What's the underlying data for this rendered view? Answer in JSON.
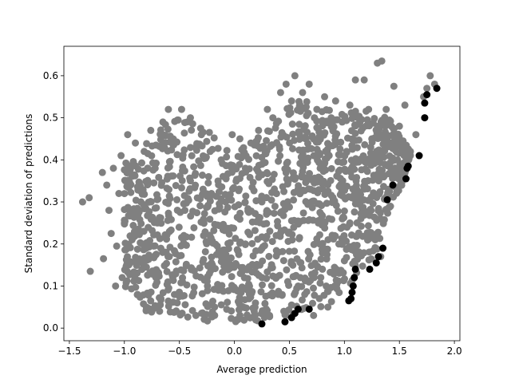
{
  "chart_data": {
    "type": "scatter",
    "title": "",
    "xlabel": "Average prediction",
    "ylabel": "Standard deviation of predictions",
    "xlim": [
      -1.55,
      2.05
    ],
    "ylim": [
      -0.03,
      0.67
    ],
    "xticks": [
      -1.5,
      -1.0,
      -0.5,
      0.0,
      0.5,
      1.0,
      1.5,
      2.0
    ],
    "xtick_labels": [
      "−1.5",
      "−1.0",
      "−0.5",
      "0.0",
      "0.5",
      "1.0",
      "1.5",
      "2.0"
    ],
    "yticks": [
      0.0,
      0.1,
      0.2,
      0.3,
      0.4,
      0.5,
      0.6
    ],
    "ytick_labels": [
      "0.0",
      "0.1",
      "0.2",
      "0.3",
      "0.4",
      "0.5",
      "0.6"
    ],
    "grid": false,
    "legend": "none",
    "series": [
      {
        "color": "#808080",
        "points": [
          [
            -1.38,
            0.3
          ],
          [
            -1.32,
            0.31
          ],
          [
            -1.31,
            0.135
          ],
          [
            -1.2,
            0.37
          ],
          [
            -1.19,
            0.165
          ],
          [
            -1.16,
            0.34
          ],
          [
            -1.14,
            0.28
          ],
          [
            -1.12,
            0.225
          ],
          [
            -1.1,
            0.38
          ],
          [
            -1.08,
            0.1
          ],
          [
            -1.07,
            0.195
          ],
          [
            -1.05,
            0.32
          ],
          [
            -1.03,
            0.41
          ],
          [
            -1.02,
            0.12
          ],
          [
            -1.0,
            0.25
          ],
          [
            -0.99,
            0.35
          ],
          [
            -0.97,
            0.46
          ],
          [
            -0.96,
            0.15
          ],
          [
            -0.93,
            0.21
          ],
          [
            -0.9,
            0.44
          ],
          [
            -0.88,
            0.08
          ],
          [
            -0.85,
            0.3
          ],
          [
            -0.82,
            0.42
          ],
          [
            -0.8,
            0.05
          ],
          [
            -0.76,
            0.47
          ],
          [
            -0.72,
            0.38
          ],
          [
            -0.68,
            0.04
          ],
          [
            -0.65,
            0.49
          ],
          [
            -0.62,
            0.18
          ],
          [
            -0.6,
            0.52
          ],
          [
            -0.55,
            0.44
          ],
          [
            -0.52,
            0.06
          ],
          [
            -0.48,
            0.52
          ],
          [
            -0.45,
            0.28
          ],
          [
            -0.4,
            0.5
          ],
          [
            -0.35,
            0.03
          ],
          [
            -0.3,
            0.46
          ],
          [
            -0.28,
            0.22
          ],
          [
            -0.22,
            0.42
          ],
          [
            -0.18,
            0.05
          ],
          [
            -0.12,
            0.4
          ],
          [
            -0.08,
            0.3
          ],
          [
            -0.02,
            0.46
          ],
          [
            0.02,
            0.02
          ],
          [
            0.05,
            0.45
          ],
          [
            0.1,
            0.38
          ],
          [
            0.15,
            0.44
          ],
          [
            0.18,
            0.04
          ],
          [
            0.22,
            0.47
          ],
          [
            0.25,
            0.3
          ],
          [
            0.3,
            0.52
          ],
          [
            0.32,
            0.03
          ],
          [
            0.35,
            0.5
          ],
          [
            0.38,
            0.22
          ],
          [
            0.42,
            0.56
          ],
          [
            0.45,
            0.04
          ],
          [
            0.47,
            0.58
          ],
          [
            0.52,
            0.54
          ],
          [
            0.55,
            0.6
          ],
          [
            0.58,
            0.1
          ],
          [
            0.62,
            0.56
          ],
          [
            0.65,
            0.45
          ],
          [
            0.68,
            0.58
          ],
          [
            0.72,
            0.03
          ],
          [
            0.75,
            0.52
          ],
          [
            0.78,
            0.38
          ],
          [
            0.82,
            0.55
          ],
          [
            0.85,
            0.05
          ],
          [
            0.88,
            0.5
          ],
          [
            0.92,
            0.54
          ],
          [
            0.95,
            0.2
          ],
          [
            0.98,
            0.49
          ],
          [
            1.02,
            0.42
          ],
          [
            1.05,
            0.53
          ],
          [
            1.08,
            0.33
          ],
          [
            1.1,
            0.59
          ],
          [
            1.12,
            0.5
          ],
          [
            1.15,
            0.26
          ],
          [
            1.18,
            0.59
          ],
          [
            1.22,
            0.52
          ],
          [
            1.25,
            0.45
          ],
          [
            1.3,
            0.63
          ],
          [
            1.34,
            0.635
          ],
          [
            1.38,
            0.52
          ],
          [
            1.42,
            0.44
          ],
          [
            1.45,
            0.575
          ],
          [
            1.5,
            0.48
          ],
          [
            1.55,
            0.53
          ],
          [
            1.6,
            0.41
          ],
          [
            1.65,
            0.46
          ],
          [
            1.72,
            0.55
          ],
          [
            1.75,
            0.57
          ],
          [
            1.78,
            0.6
          ],
          [
            1.82,
            0.58
          ],
          [
            0.6,
            0.12
          ],
          [
            0.8,
            0.14
          ],
          [
            1.0,
            0.16
          ],
          [
            1.05,
            0.25
          ],
          [
            1.2,
            0.27
          ],
          [
            1.25,
            0.22
          ],
          [
            1.28,
            0.21
          ],
          [
            1.33,
            0.17
          ],
          [
            1.4,
            0.33
          ],
          [
            1.48,
            0.38
          ],
          [
            -0.2,
            0.15
          ],
          [
            0.1,
            0.2
          ],
          [
            0.4,
            0.18
          ],
          [
            -0.4,
            0.35
          ],
          [
            -0.7,
            0.25
          ],
          [
            0.7,
            0.3
          ]
        ]
      },
      {
        "color": "#000000",
        "points": [
          [
            0.25,
            0.01
          ],
          [
            0.46,
            0.015
          ],
          [
            0.52,
            0.025
          ],
          [
            0.55,
            0.035
          ],
          [
            0.58,
            0.045
          ],
          [
            0.68,
            0.045
          ],
          [
            1.04,
            0.065
          ],
          [
            1.06,
            0.07
          ],
          [
            1.07,
            0.085
          ],
          [
            1.08,
            0.1
          ],
          [
            1.09,
            0.12
          ],
          [
            1.1,
            0.14
          ],
          [
            1.23,
            0.14
          ],
          [
            1.29,
            0.155
          ],
          [
            1.31,
            0.17
          ],
          [
            1.35,
            0.19
          ],
          [
            1.39,
            0.305
          ],
          [
            1.44,
            0.34
          ],
          [
            1.56,
            0.355
          ],
          [
            1.57,
            0.38
          ],
          [
            1.58,
            0.385
          ],
          [
            1.68,
            0.41
          ],
          [
            1.73,
            0.5
          ],
          [
            1.73,
            0.535
          ],
          [
            1.75,
            0.555
          ],
          [
            1.84,
            0.57
          ]
        ]
      }
    ],
    "dense_cloud": {
      "color": "#808080",
      "x_range": [
        -1.0,
        1.6
      ],
      "y_lower_edge": [
        [
          -1.0,
          0.1
        ],
        [
          -0.8,
          0.04
        ],
        [
          -0.5,
          0.02
        ],
        [
          0.0,
          0.01
        ],
        [
          0.3,
          0.02
        ],
        [
          0.5,
          0.03
        ],
        [
          0.8,
          0.05
        ],
        [
          1.0,
          0.08
        ],
        [
          1.1,
          0.12
        ],
        [
          1.3,
          0.18
        ],
        [
          1.4,
          0.28
        ],
        [
          1.55,
          0.35
        ],
        [
          1.6,
          0.42
        ]
      ],
      "y_upper_edge": [
        [
          -1.0,
          0.4
        ],
        [
          -0.8,
          0.44
        ],
        [
          -0.6,
          0.51
        ],
        [
          -0.4,
          0.51
        ],
        [
          -0.2,
          0.46
        ],
        [
          0.0,
          0.42
        ],
        [
          0.2,
          0.45
        ],
        [
          0.4,
          0.52
        ],
        [
          0.6,
          0.55
        ],
        [
          0.8,
          0.53
        ],
        [
          1.0,
          0.52
        ],
        [
          1.2,
          0.52
        ],
        [
          1.4,
          0.5
        ],
        [
          1.6,
          0.42
        ]
      ]
    }
  }
}
